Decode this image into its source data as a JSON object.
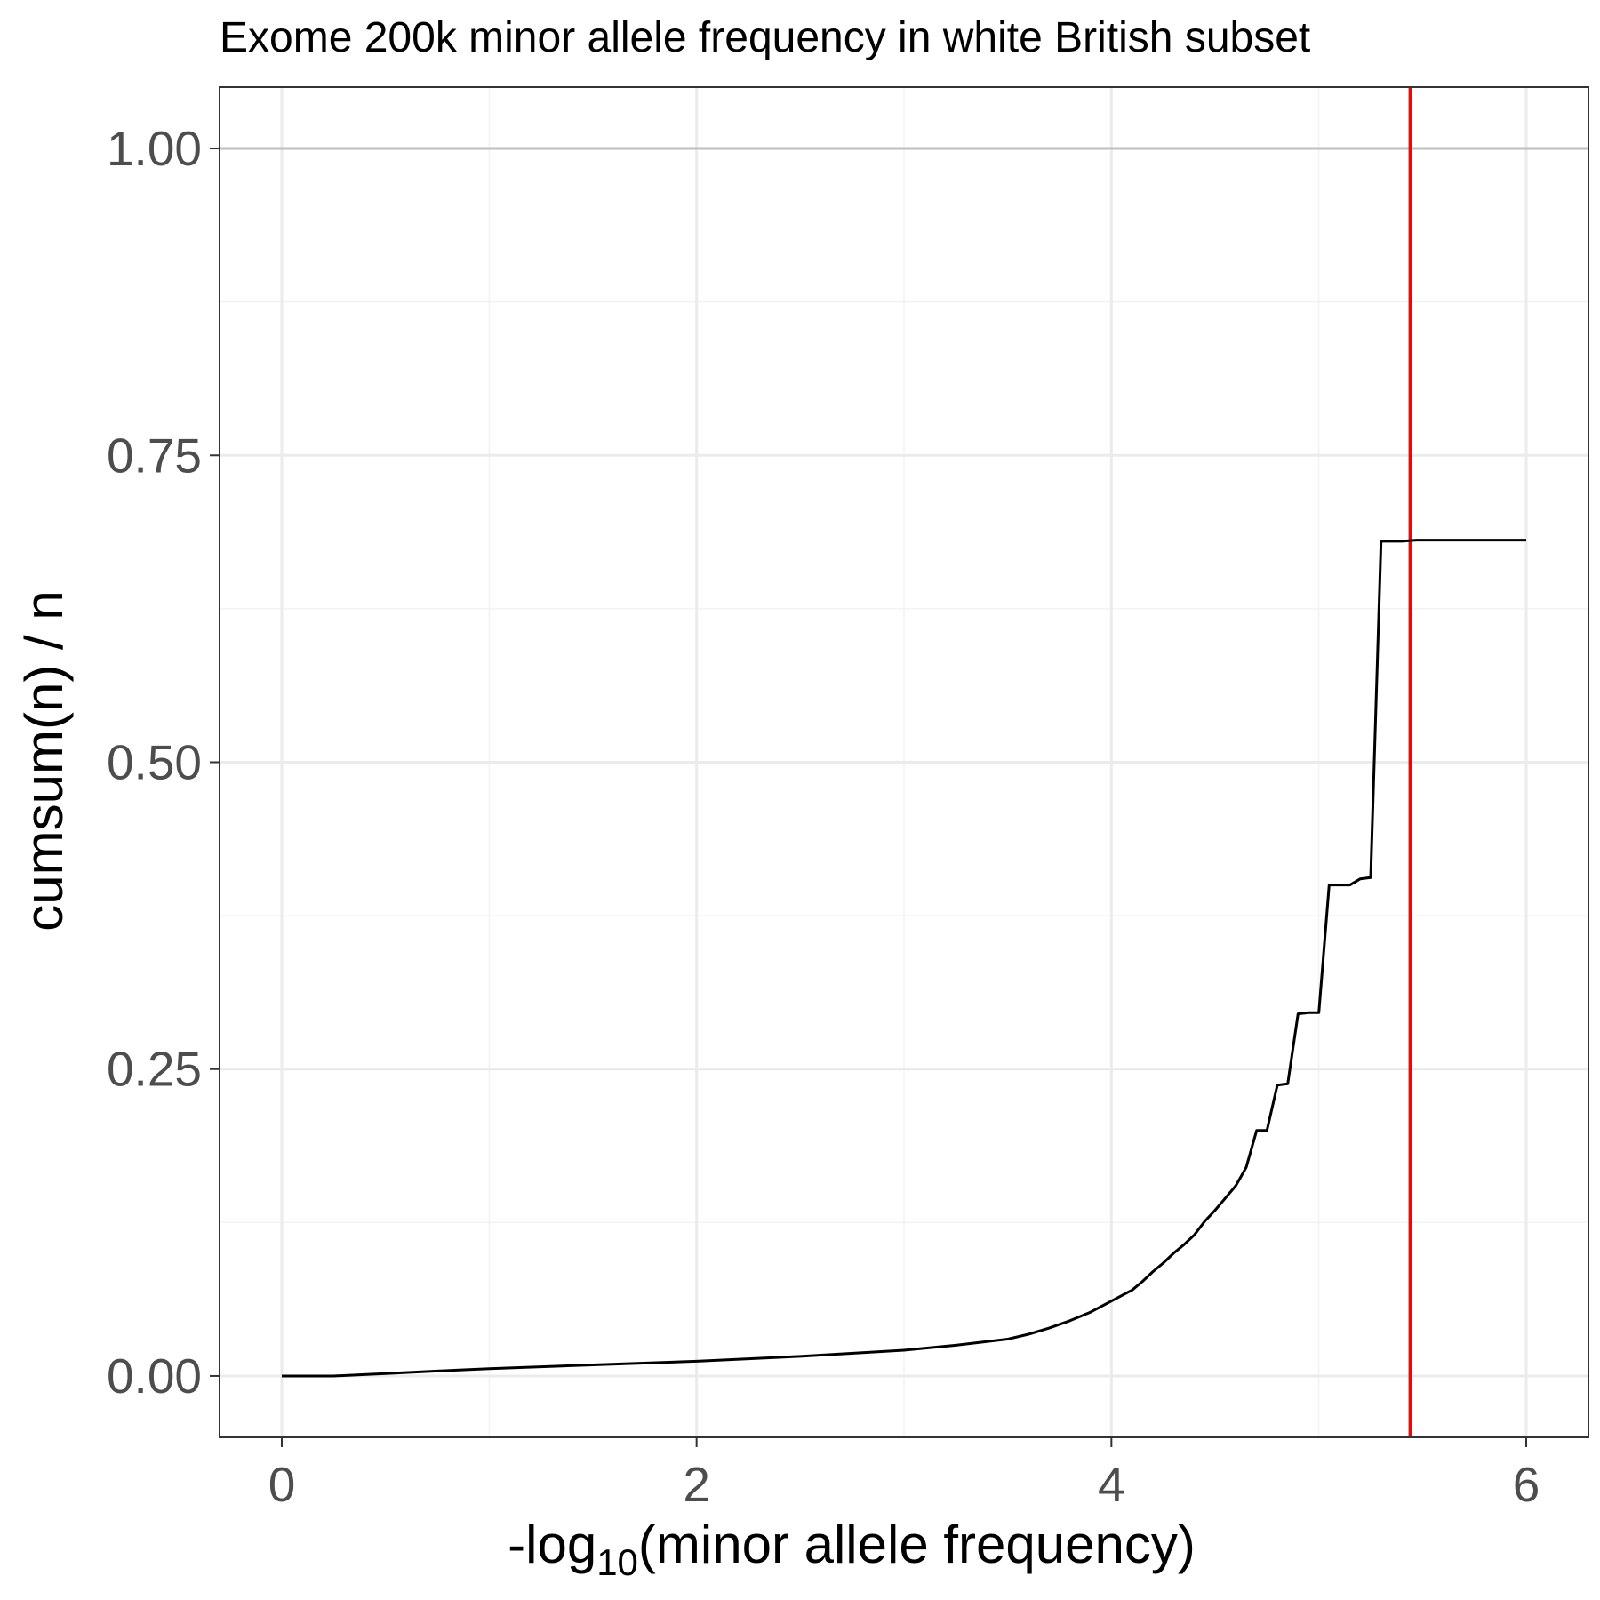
{
  "chart_data": {
    "type": "line",
    "title": "Exome 200k minor allele frequency in white British subset",
    "xlabel_prefix": "-log",
    "xlabel_sub": "10",
    "xlabel_suffix": "(minor allele frequency)",
    "ylabel": "cumsum(n) / n",
    "xlim": [
      -0.3,
      6.3
    ],
    "ylim": [
      -0.05,
      1.05
    ],
    "x_ticks": [
      0,
      2,
      4,
      6
    ],
    "x_tick_labels": [
      "0",
      "2",
      "4",
      "6"
    ],
    "y_ticks": [
      0,
      0.25,
      0.5,
      0.75,
      1.0
    ],
    "y_tick_labels": [
      "0.00",
      "0.25",
      "0.50",
      "0.75",
      "1.00"
    ],
    "grid": true,
    "reference_lines": [
      {
        "orientation": "horizontal",
        "value": 1.0,
        "color": "#bfbfbf"
      },
      {
        "orientation": "vertical",
        "value": 5.44,
        "color": "#ff0000"
      }
    ],
    "series": [
      {
        "color": "#000000",
        "x": [
          0.0,
          0.25,
          0.5,
          0.75,
          1.0,
          1.5,
          2.0,
          2.5,
          3.0,
          3.25,
          3.5,
          3.6,
          3.7,
          3.8,
          3.9,
          4.0,
          4.1,
          4.15,
          4.2,
          4.25,
          4.3,
          4.35,
          4.4,
          4.45,
          4.5,
          4.55,
          4.6,
          4.65,
          4.7,
          4.75,
          4.8,
          4.85,
          4.9,
          4.95,
          5.0,
          5.05,
          5.1,
          5.15,
          5.2,
          5.25,
          5.3,
          5.35,
          5.4,
          5.47,
          5.57,
          5.65,
          6.0
        ],
        "y": [
          0.0,
          0.0,
          0.002,
          0.004,
          0.006,
          0.009,
          0.012,
          0.016,
          0.021,
          0.025,
          0.03,
          0.034,
          0.039,
          0.045,
          0.052,
          0.061,
          0.07,
          0.077,
          0.085,
          0.092,
          0.1,
          0.107,
          0.115,
          0.126,
          0.135,
          0.145,
          0.155,
          0.17,
          0.2,
          0.2,
          0.237,
          0.238,
          0.295,
          0.296,
          0.296,
          0.4,
          0.4,
          0.4,
          0.405,
          0.406,
          0.68,
          0.68,
          0.68,
          0.681,
          0.681,
          0.681,
          0.681
        ]
      }
    ]
  }
}
